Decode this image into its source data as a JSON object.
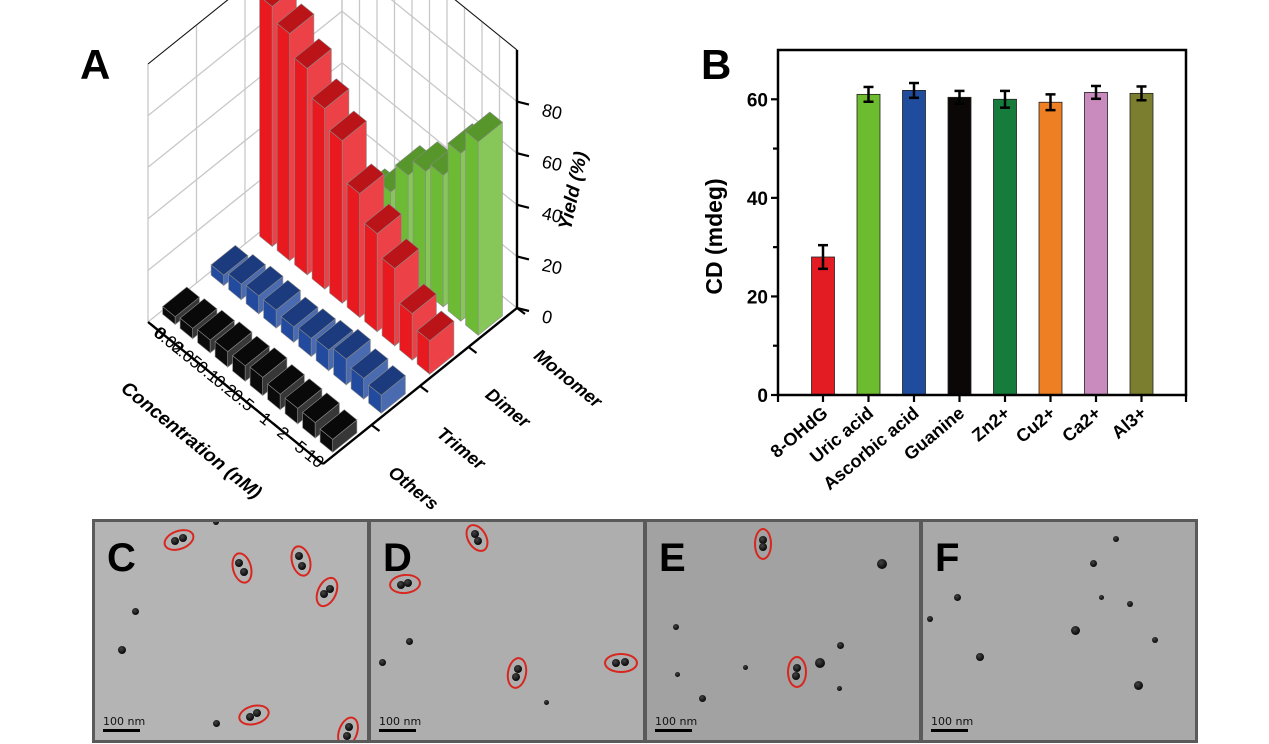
{
  "panels": {
    "A": "A",
    "B": "B",
    "C": "C",
    "D": "D",
    "E": "E",
    "F": "F"
  },
  "chart_data": [
    {
      "id": "A",
      "type": "bar",
      "subtype": "3d-bar",
      "title": "",
      "xlabel": "Concentration (nM)",
      "ylabel": "",
      "zlabel": "Yield (%)",
      "categories": [
        "0",
        "0.02",
        "0.05",
        "0.1",
        "0.2",
        "0.5",
        "1",
        "2",
        "5",
        "10"
      ],
      "zticks": [
        "0",
        "20",
        "40",
        "60",
        "80"
      ],
      "zlim": [
        0,
        100
      ],
      "grid": true,
      "series": [
        {
          "name": "Monomer",
          "color": "#6dbb35",
          "values": [
            3,
            5,
            10,
            20,
            28,
            40,
            47,
            51,
            65,
            75
          ]
        },
        {
          "name": "Dimer",
          "color": "#e8191f",
          "values": [
            93,
            88,
            80,
            70,
            63,
            48,
            38,
            30,
            18,
            13
          ]
        },
        {
          "name": "Trimer",
          "color": "#224a9e",
          "values": [
            4,
            6,
            7,
            7,
            6,
            7,
            8,
            10,
            8,
            7
          ]
        },
        {
          "name": "Others",
          "color": "#0b0b0b",
          "values": [
            3,
            4,
            5,
            6,
            6,
            7,
            6,
            6,
            6,
            5
          ]
        }
      ]
    },
    {
      "id": "B",
      "type": "bar",
      "title": "",
      "xlabel": "",
      "ylabel": "CD (mdeg)",
      "ylim": [
        0,
        70
      ],
      "yticks": [
        "0",
        "20",
        "40",
        "60"
      ],
      "grid": false,
      "categories": [
        "8-OHdG",
        "Uric acid",
        "Ascorbic acid",
        "Guanine",
        "Zn2+",
        "Cu2+",
        "Ca2+",
        "Al3+"
      ],
      "values": [
        28.0,
        61.0,
        61.8,
        60.4,
        60.0,
        59.4,
        61.4,
        61.2
      ],
      "errors": [
        2.4,
        1.5,
        1.5,
        1.3,
        1.7,
        1.6,
        1.3,
        1.4
      ],
      "colors": [
        "#e31b23",
        "#6dbb2f",
        "#1f4c9c",
        "#0b0707",
        "#167c3c",
        "#ee7f22",
        "#c98bbd",
        "#7c7e2f"
      ]
    }
  ],
  "tem": [
    {
      "letter": "C",
      "scale": "100 nm"
    },
    {
      "letter": "D",
      "scale": "100 nm"
    },
    {
      "letter": "E",
      "scale": "100 nm"
    },
    {
      "letter": "F",
      "scale": "100 nm"
    }
  ]
}
